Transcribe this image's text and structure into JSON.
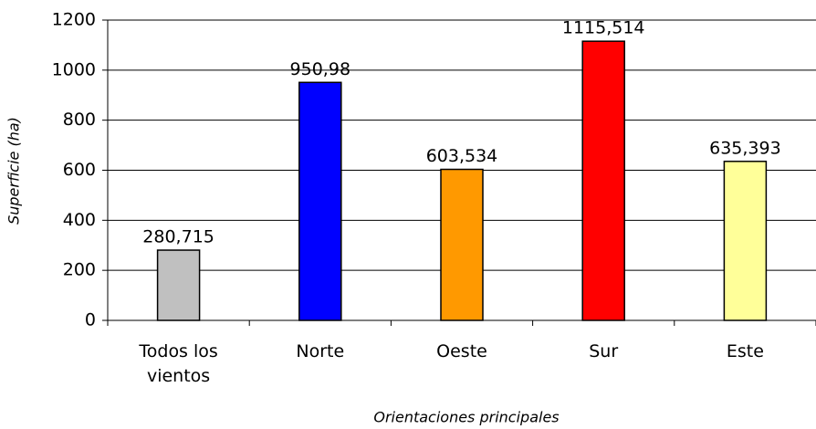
{
  "chart_data": {
    "type": "bar",
    "categories": [
      "Todos los vientos",
      "Norte",
      "Oeste",
      "Sur",
      "Este"
    ],
    "values": [
      280.715,
      950.98,
      603.534,
      1115.514,
      635.393
    ],
    "value_labels": [
      "280,715",
      "950,98",
      "603,534",
      "1115,514",
      "635,393"
    ],
    "colors": [
      "#c0c0c0",
      "#0000ff",
      "#ff9900",
      "#ff0000",
      "#ffff99"
    ],
    "xlabel": "Orientaciones principales",
    "ylabel": "Superficie (ha)",
    "ylim": [
      0,
      1200
    ],
    "yticks": [
      0,
      200,
      400,
      600,
      800,
      1000,
      1200
    ],
    "grid": true
  }
}
